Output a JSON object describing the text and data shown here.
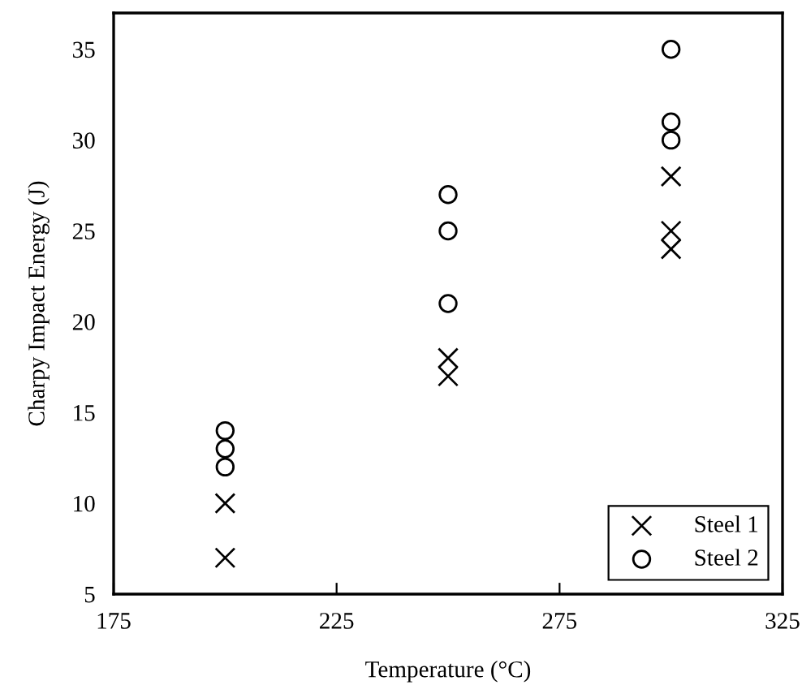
{
  "chart_data": {
    "type": "scatter",
    "xlabel": "Temperature (°C)",
    "ylabel": "Charpy Impact Energy (J)",
    "xlim": [
      175,
      325
    ],
    "xticks": [
      175,
      225,
      275,
      325
    ],
    "ylim": [
      5,
      37
    ],
    "yticks": [
      5,
      10,
      15,
      20,
      25,
      30,
      35
    ],
    "grid": false,
    "legend": "bottom right",
    "series": [
      {
        "name": "Steel 1",
        "color": "#000000",
        "marker": "cross",
        "x": [
          200,
          200,
          250,
          250,
          300,
          300,
          300
        ],
        "values": [
          10,
          7,
          18,
          17,
          28,
          25,
          24
        ]
      },
      {
        "name": "Steel 2",
        "color": "#000000",
        "marker": "circle",
        "x": [
          200,
          200,
          200,
          250,
          250,
          250,
          300,
          300,
          300
        ],
        "values": [
          14,
          13,
          12,
          27,
          25,
          21,
          35,
          31,
          30
        ]
      }
    ]
  }
}
